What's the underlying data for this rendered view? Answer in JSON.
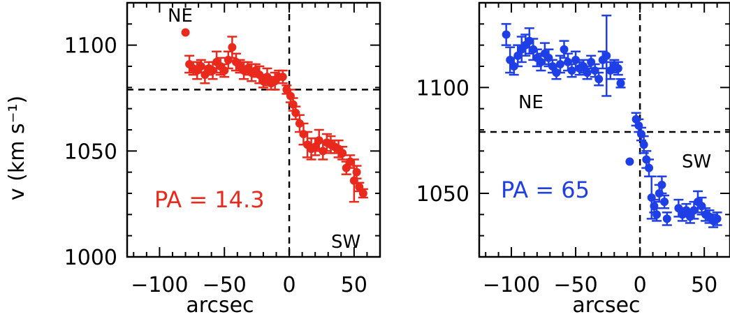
{
  "chart_data": [
    {
      "type": "scatter",
      "panel": "left",
      "color": "#e8291c",
      "xlabel": "arcsec",
      "ylabel": "v (km s⁻¹)",
      "xlim": [
        -125,
        70
      ],
      "ylim": [
        1000,
        1120
      ],
      "xticks": [
        -100,
        -50,
        0,
        50
      ],
      "xtick_labels": [
        "−100",
        "−50",
        "0",
        "50"
      ],
      "yticks": [
        1000,
        1050,
        1100
      ],
      "ytick_labels": [
        "1000",
        "1050",
        "1100"
      ],
      "ref_lines": {
        "x": 0,
        "y": 1079
      },
      "annotations": {
        "ne": "NE",
        "sw": "SW",
        "pa": "PA = 14.3"
      },
      "points": [
        {
          "x": -80,
          "y": 1106,
          "err": 0
        },
        {
          "x": -77,
          "y": 1091,
          "err": 4
        },
        {
          "x": -74,
          "y": 1089,
          "err": 3
        },
        {
          "x": -71,
          "y": 1088,
          "err": 4
        },
        {
          "x": -68,
          "y": 1090,
          "err": 3
        },
        {
          "x": -65,
          "y": 1086,
          "err": 4
        },
        {
          "x": -62,
          "y": 1089,
          "err": 3
        },
        {
          "x": -59,
          "y": 1088,
          "err": 4
        },
        {
          "x": -56,
          "y": 1092,
          "err": 5
        },
        {
          "x": -53,
          "y": 1090,
          "err": 4
        },
        {
          "x": -50,
          "y": 1088,
          "err": 3
        },
        {
          "x": -47,
          "y": 1093,
          "err": 4
        },
        {
          "x": -44,
          "y": 1099,
          "err": 5
        },
        {
          "x": -41,
          "y": 1092,
          "err": 4
        },
        {
          "x": -38,
          "y": 1090,
          "err": 3
        },
        {
          "x": -35,
          "y": 1088,
          "err": 4
        },
        {
          "x": -32,
          "y": 1089,
          "err": 3
        },
        {
          "x": -29,
          "y": 1087,
          "err": 4
        },
        {
          "x": -26,
          "y": 1088,
          "err": 3
        },
        {
          "x": -23,
          "y": 1086,
          "err": 4
        },
        {
          "x": -20,
          "y": 1083,
          "err": 3
        },
        {
          "x": -17,
          "y": 1085,
          "err": 4
        },
        {
          "x": -14,
          "y": 1082,
          "err": 3
        },
        {
          "x": -11,
          "y": 1083,
          "err": 4
        },
        {
          "x": -8,
          "y": 1085,
          "err": 3
        },
        {
          "x": -5,
          "y": 1085,
          "err": 3
        },
        {
          "x": -2,
          "y": 1079,
          "err": 2
        },
        {
          "x": 1,
          "y": 1076,
          "err": 3
        },
        {
          "x": 3,
          "y": 1072,
          "err": 3
        },
        {
          "x": 5,
          "y": 1068,
          "err": 3
        },
        {
          "x": 8,
          "y": 1063,
          "err": 4
        },
        {
          "x": 11,
          "y": 1058,
          "err": 5
        },
        {
          "x": 14,
          "y": 1053,
          "err": 6
        },
        {
          "x": 17,
          "y": 1051,
          "err": 5
        },
        {
          "x": 20,
          "y": 1052,
          "err": 4
        },
        {
          "x": 23,
          "y": 1055,
          "err": 5
        },
        {
          "x": 26,
          "y": 1050,
          "err": 4
        },
        {
          "x": 29,
          "y": 1054,
          "err": 4
        },
        {
          "x": 32,
          "y": 1053,
          "err": 4
        },
        {
          "x": 35,
          "y": 1052,
          "err": 3
        },
        {
          "x": 38,
          "y": 1051,
          "err": 4
        },
        {
          "x": 41,
          "y": 1049,
          "err": 3
        },
        {
          "x": 44,
          "y": 1042,
          "err": 3
        },
        {
          "x": 47,
          "y": 1045,
          "err": 3
        },
        {
          "x": 50,
          "y": 1036,
          "err": 10
        },
        {
          "x": 52,
          "y": 1040,
          "err": 3
        },
        {
          "x": 54,
          "y": 1033,
          "err": 2
        },
        {
          "x": 57,
          "y": 1030,
          "err": 2
        }
      ]
    },
    {
      "type": "scatter",
      "panel": "right",
      "color": "#1f3fe6",
      "xlabel": "arcsec",
      "ylabel": "",
      "xlim": [
        -125,
        70
      ],
      "ylim": [
        1020,
        1140
      ],
      "xticks": [
        -100,
        -50,
        0,
        50
      ],
      "xtick_labels": [
        "−100",
        "−50",
        "0",
        "50"
      ],
      "yticks": [
        1050,
        1100
      ],
      "ytick_labels": [
        "1050",
        "1100"
      ],
      "ref_lines": {
        "x": 0,
        "y": 1079
      },
      "annotations": {
        "ne": "NE",
        "sw": "SW",
        "pa": "PA = 65"
      },
      "points": [
        {
          "x": -104,
          "y": 1125,
          "err": 5
        },
        {
          "x": -101,
          "y": 1113,
          "err": 6
        },
        {
          "x": -98,
          "y": 1110,
          "err": 4
        },
        {
          "x": -95,
          "y": 1115,
          "err": 5
        },
        {
          "x": -92,
          "y": 1118,
          "err": 6
        },
        {
          "x": -89,
          "y": 1120,
          "err": 5
        },
        {
          "x": -86,
          "y": 1122,
          "err": 6
        },
        {
          "x": -83,
          "y": 1118,
          "err": 5
        },
        {
          "x": -80,
          "y": 1114,
          "err": 4
        },
        {
          "x": -77,
          "y": 1112,
          "err": 4
        },
        {
          "x": -74,
          "y": 1116,
          "err": 5
        },
        {
          "x": -71,
          "y": 1114,
          "err": 4
        },
        {
          "x": -68,
          "y": 1110,
          "err": 3
        },
        {
          "x": -65,
          "y": 1107,
          "err": 3
        },
        {
          "x": -62,
          "y": 1111,
          "err": 4
        },
        {
          "x": -59,
          "y": 1118,
          "err": 4
        },
        {
          "x": -56,
          "y": 1112,
          "err": 4
        },
        {
          "x": -53,
          "y": 1108,
          "err": 3
        },
        {
          "x": -50,
          "y": 1113,
          "err": 4
        },
        {
          "x": -47,
          "y": 1109,
          "err": 3
        },
        {
          "x": -44,
          "y": 1110,
          "err": 3
        },
        {
          "x": -41,
          "y": 1107,
          "err": 3
        },
        {
          "x": -38,
          "y": 1112,
          "err": 3
        },
        {
          "x": -35,
          "y": 1108,
          "err": 3
        },
        {
          "x": -32,
          "y": 1104,
          "err": 3
        },
        {
          "x": -29,
          "y": 1113,
          "err": 4
        },
        {
          "x": -26,
          "y": 1115,
          "err": 19
        },
        {
          "x": -23,
          "y": 1108,
          "err": 4
        },
        {
          "x": -20,
          "y": 1110,
          "err": 3
        },
        {
          "x": -17,
          "y": 1109,
          "err": 3
        },
        {
          "x": -15,
          "y": 1102,
          "err": 2
        },
        {
          "x": -8,
          "y": 1065,
          "err": 0
        },
        {
          "x": -3,
          "y": 1085,
          "err": 3
        },
        {
          "x": -1,
          "y": 1082,
          "err": 3
        },
        {
          "x": 1,
          "y": 1078,
          "err": 3
        },
        {
          "x": 3,
          "y": 1073,
          "err": 4
        },
        {
          "x": 5,
          "y": 1066,
          "err": 4
        },
        {
          "x": 7,
          "y": 1062,
          "err": 4
        },
        {
          "x": 9,
          "y": 1048,
          "err": 10
        },
        {
          "x": 11,
          "y": 1044,
          "err": 3
        },
        {
          "x": 13,
          "y": 1040,
          "err": 3
        },
        {
          "x": 15,
          "y": 1050,
          "err": 4
        },
        {
          "x": 17,
          "y": 1054,
          "err": 4
        },
        {
          "x": 19,
          "y": 1046,
          "err": 3
        },
        {
          "x": 21,
          "y": 1038,
          "err": 3
        },
        {
          "x": 30,
          "y": 1043,
          "err": 4
        },
        {
          "x": 33,
          "y": 1040,
          "err": 3
        },
        {
          "x": 36,
          "y": 1042,
          "err": 3
        },
        {
          "x": 39,
          "y": 1039,
          "err": 3
        },
        {
          "x": 42,
          "y": 1042,
          "err": 4
        },
        {
          "x": 45,
          "y": 1046,
          "err": 5
        },
        {
          "x": 48,
          "y": 1044,
          "err": 4
        },
        {
          "x": 51,
          "y": 1040,
          "err": 3
        },
        {
          "x": 54,
          "y": 1039,
          "err": 3
        },
        {
          "x": 57,
          "y": 1037,
          "err": 3
        },
        {
          "x": 60,
          "y": 1038,
          "err": 3
        }
      ]
    }
  ]
}
